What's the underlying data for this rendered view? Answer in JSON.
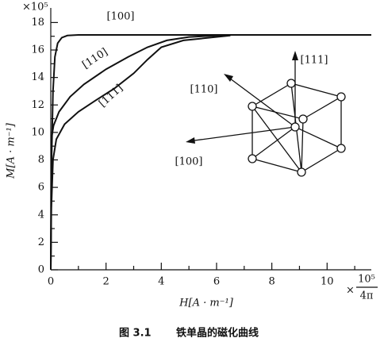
{
  "chart_data": {
    "type": "line",
    "y_unit": "×10⁵",
    "y_label": "M[A · m⁻¹]",
    "x_label": "H[A · m⁻¹]",
    "x_unit": {
      "prefix": "×",
      "numerator": "10⁵",
      "denominator": "4π"
    },
    "xlim": [
      0,
      11.6
    ],
    "ylim": [
      0,
      18.6
    ],
    "xticks": [
      0,
      2,
      4,
      6,
      8,
      10
    ],
    "yticks": [
      0,
      2,
      4,
      6,
      8,
      10,
      12,
      14,
      16,
      18
    ],
    "series": [
      {
        "name": "[100]",
        "color": "#111111",
        "x": [
          0,
          0.03,
          0.08,
          0.15,
          0.25,
          0.4,
          0.6,
          1,
          11.6
        ],
        "values": [
          0,
          8,
          13,
          15.5,
          16.5,
          16.9,
          17.05,
          17.1,
          17.1
        ]
      },
      {
        "name": "[110]",
        "color": "#111111",
        "x": [
          0,
          0.02,
          0.1,
          0.3,
          0.7,
          1.2,
          2,
          2.8,
          3.5,
          4.2,
          5,
          6.5
        ],
        "values": [
          0,
          9.5,
          10.5,
          11.5,
          12.6,
          13.5,
          14.6,
          15.5,
          16.2,
          16.7,
          16.95,
          17.1
        ]
      },
      {
        "name": "[111]",
        "color": "#111111",
        "x": [
          0,
          0.02,
          0.08,
          0.2,
          0.5,
          1,
          1.6,
          2.3,
          3,
          3.5,
          4,
          4.8,
          6.5
        ],
        "values": [
          0,
          4.5,
          8,
          9.5,
          10.6,
          11.5,
          12.3,
          13.2,
          14.3,
          15.3,
          16.2,
          16.7,
          17.05
        ]
      }
    ],
    "annotations": [
      "[111]",
      "[110]",
      "[100]"
    ],
    "caption": {
      "number": "图 3.1",
      "text": "铁单晶的磁化曲线"
    }
  }
}
